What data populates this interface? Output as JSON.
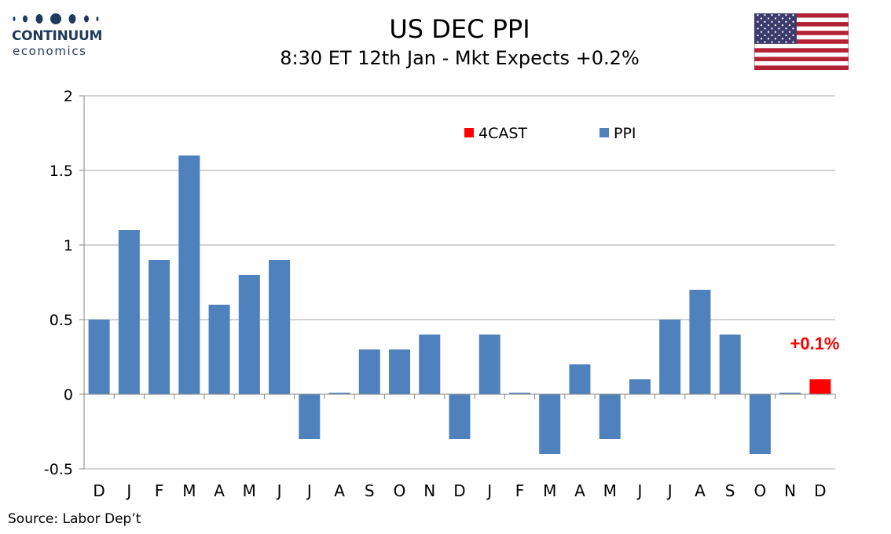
{
  "header": {
    "logo_name": "CONTINUUM",
    "logo_sub": "economics",
    "title": "US DEC PPI",
    "subtitle": "8:30 ET 12th Jan - Mkt Expects +0.2%"
  },
  "footer": {
    "source": "Source: Labor Dep’t"
  },
  "colors": {
    "ppi": "#4f81bd",
    "forecast": "#ff0000",
    "logo": "#1f3a5c",
    "gridline": "#a6a6a6"
  },
  "chart_data": {
    "type": "bar",
    "categories": [
      "D",
      "J",
      "F",
      "M",
      "A",
      "M",
      "J",
      "J",
      "A",
      "S",
      "O",
      "N",
      "D",
      "J",
      "F",
      "M",
      "A",
      "M",
      "J",
      "J",
      "A",
      "S",
      "O",
      "N",
      "D"
    ],
    "series": [
      {
        "name": "PPI",
        "values": [
          0.5,
          1.1,
          0.9,
          1.6,
          0.6,
          0.8,
          0.9,
          -0.3,
          0.01,
          0.3,
          0.3,
          0.4,
          -0.3,
          0.4,
          0.01,
          -0.4,
          0.2,
          -0.3,
          0.1,
          0.5,
          0.7,
          0.4,
          -0.4,
          0.01,
          null
        ]
      },
      {
        "name": "4CAST",
        "values": [
          null,
          null,
          null,
          null,
          null,
          null,
          null,
          null,
          null,
          null,
          null,
          null,
          null,
          null,
          null,
          null,
          null,
          null,
          null,
          null,
          null,
          null,
          null,
          null,
          0.1
        ]
      }
    ],
    "yticks": [
      "2",
      "1.5",
      "1",
      "0.5",
      "0",
      "-0.5"
    ],
    "ylim": [
      -0.5,
      2
    ],
    "grid": true,
    "legend_position": "top",
    "annotation": "+0.1%"
  }
}
